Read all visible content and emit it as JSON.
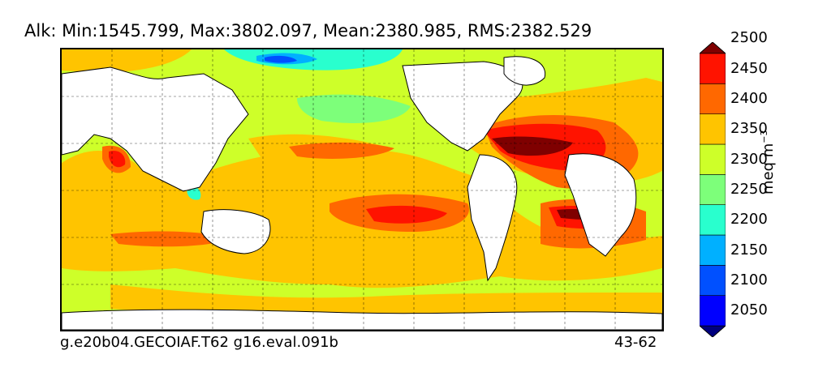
{
  "title": "Alk: Min:1545.799, Max:3802.097, Mean:2380.985, RMS:2382.529",
  "footer": {
    "left": "g.e20b04.GECOIAF.T62 g16.eval.091b",
    "right": "43-62"
  },
  "colorbar": {
    "unit_main": "meq m",
    "unit_exp": "−3",
    "levels": [
      2050,
      2100,
      2150,
      2200,
      2250,
      2300,
      2350,
      2400,
      2450,
      2500
    ],
    "level_labels": [
      "2050",
      "2100",
      "2150",
      "2200",
      "2250",
      "2300",
      "2350",
      "2400",
      "2450",
      "2500"
    ],
    "colors": [
      "#00007f",
      "#0000ff",
      "#0050ff",
      "#00b0ff",
      "#29ffce",
      "#7dff7a",
      "#ceff29",
      "#ffc400",
      "#ff6800",
      "#ff1300",
      "#7f0000"
    ],
    "extend": "both"
  },
  "map": {
    "land_color": "#ffffff",
    "gridlines": "dashed"
  }
}
